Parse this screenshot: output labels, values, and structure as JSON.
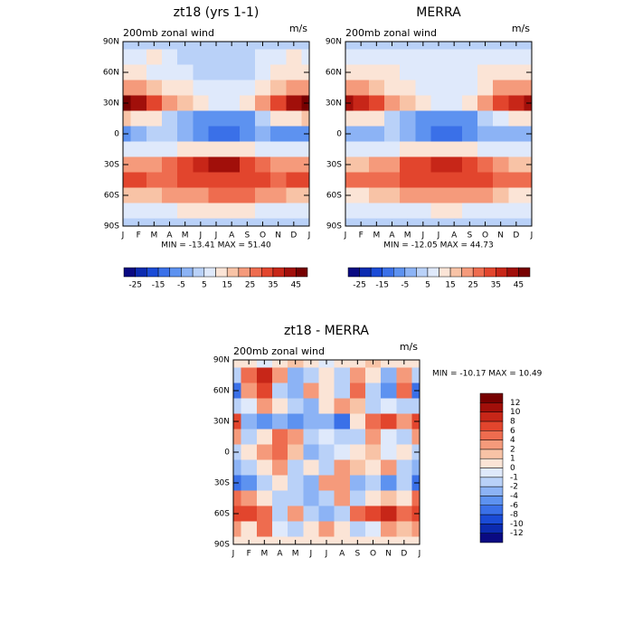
{
  "chart_data": [
    {
      "type": "contour",
      "title": "zt18 (yrs 1-1)",
      "subtitle": "200mb zonal wind",
      "units": "m/s",
      "categories": [
        "J",
        "F",
        "M",
        "A",
        "M",
        "J",
        "J",
        "A",
        "S",
        "O",
        "N",
        "D",
        "J"
      ],
      "y": [
        90,
        75,
        60,
        45,
        30,
        15,
        0,
        -15,
        -30,
        -45,
        -60,
        -75,
        -90
      ],
      "ylim": [
        -90,
        90
      ],
      "yticks": [
        {
          "value": 90,
          "label": "90N"
        },
        {
          "value": 60,
          "label": "60N"
        },
        {
          "value": 30,
          "label": "30N"
        },
        0,
        {
          "value": -30,
          "label": "30S"
        },
        {
          "value": -60,
          "label": "60S"
        },
        {
          "value": -90,
          "label": "90S"
        }
      ],
      "stats": "MIN = -13.41 MAX =  51.40",
      "colorbar": "horizontal",
      "colorbar_label_every": 2,
      "levels": [
        -25,
        -20,
        -15,
        -10,
        -5,
        0,
        5,
        10,
        15,
        20,
        25,
        30,
        35,
        40,
        45
      ],
      "colors": [
        "#0a0a82",
        "#0c2bb0",
        "#1a4bd6",
        "#3a70e8",
        "#5d92f0",
        "#8cb3f5",
        "#b9d1f8",
        "#dfe9fb",
        "#fbe4d6",
        "#f8c3a6",
        "#f59a7b",
        "#ee6c4f",
        "#e2452d",
        "#c72618",
        "#a10f0a",
        "#760000"
      ],
      "z": [
        [
          2,
          2,
          3,
          2,
          2,
          2,
          2,
          2,
          2,
          2,
          2,
          2,
          2
        ],
        [
          8,
          6,
          12,
          6,
          4,
          4,
          4,
          4,
          4,
          6,
          8,
          12,
          8
        ],
        [
          12,
          10,
          8,
          6,
          6,
          4,
          2,
          2,
          4,
          8,
          10,
          14,
          12
        ],
        [
          22,
          20,
          16,
          12,
          10,
          8,
          6,
          6,
          8,
          12,
          18,
          22,
          22
        ],
        [
          46,
          40,
          30,
          22,
          16,
          12,
          8,
          8,
          12,
          22,
          32,
          40,
          46
        ],
        [
          16,
          14,
          10,
          4,
          -2,
          -6,
          -10,
          -10,
          -6,
          4,
          10,
          14,
          16
        ],
        [
          -6,
          -4,
          0,
          0,
          -4,
          -8,
          -12,
          -12,
          -6,
          -4,
          -6,
          -6,
          -6
        ],
        [
          6,
          6,
          6,
          8,
          10,
          10,
          10,
          10,
          10,
          8,
          6,
          6,
          6
        ],
        [
          20,
          20,
          22,
          26,
          30,
          36,
          40,
          40,
          34,
          28,
          24,
          20,
          20
        ],
        [
          30,
          30,
          28,
          28,
          30,
          30,
          32,
          32,
          34,
          30,
          28,
          30,
          30
        ],
        [
          16,
          16,
          18,
          20,
          22,
          24,
          26,
          26,
          26,
          24,
          20,
          16,
          16
        ],
        [
          6,
          6,
          6,
          8,
          10,
          10,
          10,
          10,
          10,
          8,
          6,
          6,
          6
        ],
        [
          2,
          2,
          2,
          2,
          2,
          2,
          2,
          2,
          2,
          2,
          2,
          2,
          2
        ]
      ]
    },
    {
      "type": "contour",
      "title": "MERRA",
      "subtitle": "200mb zonal wind",
      "units": "m/s",
      "categories": [
        "J",
        "F",
        "M",
        "A",
        "M",
        "J",
        "J",
        "A",
        "S",
        "O",
        "N",
        "D",
        "J"
      ],
      "y": [
        90,
        75,
        60,
        45,
        30,
        15,
        0,
        -15,
        -30,
        -45,
        -60,
        -75,
        -90
      ],
      "ylim": [
        -90,
        90
      ],
      "yticks": [
        {
          "value": 90,
          "label": "90N"
        },
        {
          "value": 60,
          "label": "60N"
        },
        {
          "value": 30,
          "label": "30N"
        },
        0,
        {
          "value": -30,
          "label": "30S"
        },
        {
          "value": -60,
          "label": "60S"
        },
        {
          "value": -90,
          "label": "90S"
        }
      ],
      "stats": "MIN = -12.05 MAX =  44.73",
      "colorbar": "horizontal",
      "colorbar_label_every": 2,
      "levels": [
        -25,
        -20,
        -15,
        -10,
        -5,
        0,
        5,
        10,
        15,
        20,
        25,
        30,
        35,
        40,
        45
      ],
      "colors": [
        "#0a0a82",
        "#0c2bb0",
        "#1a4bd6",
        "#3a70e8",
        "#5d92f0",
        "#8cb3f5",
        "#b9d1f8",
        "#dfe9fb",
        "#fbe4d6",
        "#f8c3a6",
        "#f59a7b",
        "#ee6c4f",
        "#e2452d",
        "#c72618",
        "#a10f0a",
        "#760000"
      ],
      "z": [
        [
          4,
          4,
          4,
          4,
          4,
          4,
          4,
          4,
          4,
          4,
          4,
          4,
          4
        ],
        [
          8,
          8,
          8,
          6,
          6,
          6,
          6,
          6,
          6,
          8,
          8,
          8,
          8
        ],
        [
          14,
          14,
          12,
          10,
          8,
          6,
          6,
          6,
          8,
          10,
          12,
          14,
          14
        ],
        [
          24,
          22,
          18,
          14,
          10,
          8,
          6,
          6,
          8,
          14,
          20,
          24,
          24
        ],
        [
          40,
          38,
          32,
          24,
          16,
          12,
          8,
          8,
          12,
          22,
          32,
          38,
          40
        ],
        [
          14,
          14,
          10,
          4,
          -2,
          -6,
          -10,
          -10,
          -6,
          2,
          8,
          12,
          14
        ],
        [
          -4,
          -4,
          -2,
          0,
          -4,
          -8,
          -12,
          -12,
          -6,
          -4,
          -4,
          -4,
          -4
        ],
        [
          6,
          6,
          6,
          8,
          10,
          10,
          10,
          10,
          10,
          8,
          6,
          6,
          6
        ],
        [
          18,
          18,
          20,
          24,
          30,
          34,
          38,
          38,
          32,
          26,
          22,
          18,
          18
        ],
        [
          28,
          28,
          28,
          28,
          30,
          30,
          32,
          32,
          32,
          30,
          28,
          28,
          28
        ],
        [
          14,
          14,
          16,
          18,
          20,
          22,
          24,
          24,
          22,
          20,
          18,
          14,
          14
        ],
        [
          6,
          6,
          6,
          8,
          8,
          8,
          10,
          10,
          8,
          8,
          6,
          6,
          6
        ],
        [
          2,
          2,
          2,
          2,
          2,
          2,
          2,
          2,
          2,
          2,
          2,
          2,
          2
        ]
      ]
    },
    {
      "type": "contour",
      "title": "zt18 - MERRA",
      "subtitle": "200mb zonal wind",
      "units": "m/s",
      "categories": [
        "J",
        "F",
        "M",
        "A",
        "M",
        "J",
        "J",
        "A",
        "S",
        "O",
        "N",
        "D",
        "J"
      ],
      "y": [
        90,
        75,
        60,
        45,
        30,
        15,
        0,
        -15,
        -30,
        -45,
        -60,
        -75,
        -90
      ],
      "ylim": [
        -90,
        90
      ],
      "yticks": [
        {
          "value": 90,
          "label": "90N"
        },
        {
          "value": 60,
          "label": "60N"
        },
        {
          "value": 30,
          "label": "30N"
        },
        0,
        {
          "value": -30,
          "label": "30S"
        },
        {
          "value": -60,
          "label": "60S"
        },
        {
          "value": -90,
          "label": "90S"
        }
      ],
      "stats": "MIN = -10.17 MAX =  10.49",
      "colorbar": "vertical",
      "colorbar_label_every": 1,
      "levels": [
        -12,
        -10,
        -8,
        -6,
        -4,
        -2,
        -1,
        0,
        1,
        2,
        4,
        6,
        8,
        10,
        12
      ],
      "colors": [
        "#0a0a82",
        "#0c2bb0",
        "#1a4bd6",
        "#3a70e8",
        "#5d92f0",
        "#8cb3f5",
        "#b9d1f8",
        "#dfe9fb",
        "#fbe4d6",
        "#f8c3a6",
        "#f59a7b",
        "#ee6c4f",
        "#e2452d",
        "#c72618",
        "#a10f0a",
        "#760000"
      ],
      "z": [
        [
          0,
          0,
          -1,
          0,
          1,
          0,
          -1,
          0,
          0,
          1,
          0,
          0,
          0
        ],
        [
          -2,
          4,
          8,
          2,
          -4,
          -2,
          0,
          -2,
          2,
          0,
          -4,
          2,
          -2
        ],
        [
          -8,
          2,
          6,
          -2,
          -4,
          2,
          0,
          -2,
          4,
          -2,
          -6,
          4,
          -8
        ],
        [
          -2,
          -1,
          2,
          0,
          -2,
          -4,
          0,
          2,
          1,
          -2,
          -1,
          -2,
          -2
        ],
        [
          6,
          -4,
          -6,
          -4,
          -6,
          -4,
          -4,
          -8,
          0,
          4,
          6,
          2,
          6
        ],
        [
          2,
          -2,
          0,
          4,
          2,
          -2,
          -1,
          -2,
          -2,
          2,
          -1,
          -2,
          2
        ],
        [
          -2,
          0,
          2,
          4,
          1,
          -4,
          -2,
          -1,
          0,
          1,
          -1,
          0,
          -2
        ],
        [
          -4,
          -2,
          0,
          2,
          -2,
          0,
          -2,
          2,
          1,
          0,
          2,
          -2,
          -4
        ],
        [
          -8,
          -6,
          -2,
          0,
          -2,
          -4,
          2,
          2,
          -4,
          -2,
          -6,
          -2,
          -8
        ],
        [
          4,
          2,
          0,
          -2,
          -2,
          -4,
          -2,
          2,
          -2,
          0,
          1,
          0,
          4
        ],
        [
          6,
          6,
          4,
          -2,
          2,
          -2,
          -4,
          -2,
          4,
          6,
          8,
          4,
          6
        ],
        [
          2,
          0,
          4,
          -1,
          -2,
          0,
          2,
          0,
          -2,
          -1,
          2,
          1,
          2
        ],
        [
          0,
          0,
          0,
          0,
          0,
          0,
          0,
          0,
          0,
          0,
          0,
          0,
          0
        ]
      ]
    }
  ]
}
